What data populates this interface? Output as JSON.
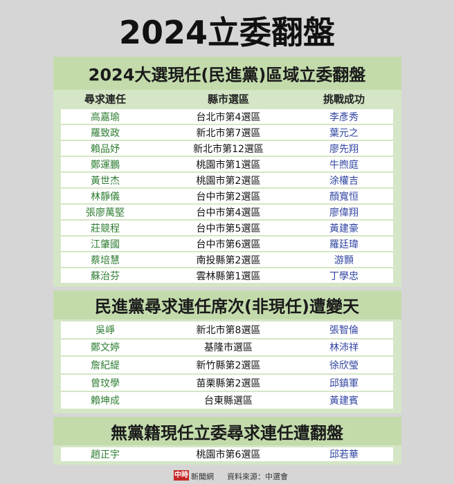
{
  "title": "2024立委翻盤",
  "columns": [
    "尋求連任",
    "縣市選區",
    "挑戰成功"
  ],
  "sections": [
    {
      "header": "2024大選現任(民進黨)區域立委翻盤",
      "rows": [
        [
          "高嘉瑜",
          "台北市第4選區",
          "李彥秀"
        ],
        [
          "羅致政",
          "新北市第7選區",
          "葉元之"
        ],
        [
          "賴品妤",
          "新北市第12選區",
          "廖先翔"
        ],
        [
          "鄭運鵬",
          "桃園市第1選區",
          "牛煦庭"
        ],
        [
          "黃世杰",
          "桃園市第2選區",
          "涂權吉"
        ],
        [
          "林靜儀",
          "台中市第2選區",
          "顏寬恒"
        ],
        [
          "張廖萬堅",
          "台中市第4選區",
          "廖偉翔"
        ],
        [
          "莊競程",
          "台中市第5選區",
          "黃建豪"
        ],
        [
          "江肇國",
          "台中市第6選區",
          "羅廷瑋"
        ],
        [
          "蔡培慧",
          "南投縣第2選區",
          "游顥"
        ],
        [
          "蘇治芬",
          "雲林縣第1選區",
          "丁學忠"
        ]
      ]
    },
    {
      "header": "民進黨尋求連任席次(非現任)遭變天",
      "rows": [
        [
          "吳崢",
          "新北市第8選區",
          "張智倫"
        ],
        [
          "鄭文婷",
          "基隆市選區",
          "林沛祥"
        ],
        [
          "詹紀緹",
          "新竹縣第2選區",
          "徐欣瑩"
        ],
        [
          "曾玟學",
          "苗栗縣第2選區",
          "邱鎮軍"
        ],
        [
          "賴坤成",
          "台東縣選區",
          "黃建賓"
        ]
      ]
    },
    {
      "header": "無黨籍現任立委尋求連任遭翻盤",
      "rows": [
        [
          "趙正宇",
          "桃園市第6選區",
          "邱若華"
        ]
      ]
    }
  ],
  "footer": {
    "logo": "中時",
    "logo_text": "新聞網",
    "source": "資料來源：中選會"
  }
}
